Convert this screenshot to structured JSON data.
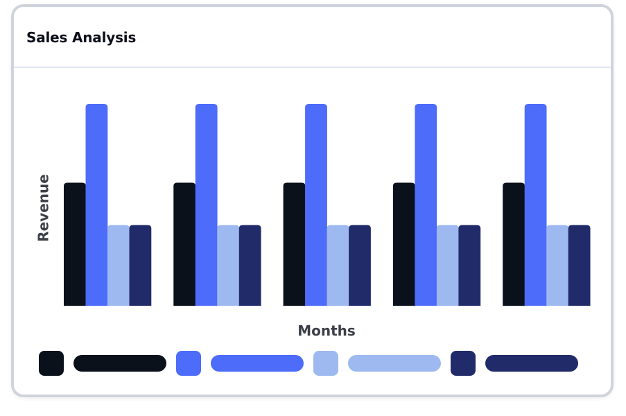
{
  "card": {
    "title": "Sales Analysis"
  },
  "chart_data": {
    "type": "bar",
    "xlabel": "Months",
    "ylabel": "Revenue",
    "categories": [
      "",
      "",
      "",
      "",
      ""
    ],
    "ylim": [
      0,
      100
    ],
    "grid": false,
    "legend_position": "bottom",
    "series": [
      {
        "color": "#0b111b",
        "values": [
          61,
          61,
          61,
          61,
          61
        ]
      },
      {
        "color": "#4d6cfa",
        "values": [
          100,
          100,
          100,
          100,
          100
        ]
      },
      {
        "color": "#9db9f0",
        "values": [
          40,
          40,
          40,
          40,
          40
        ]
      },
      {
        "color": "#212b69",
        "values": [
          40,
          40,
          40,
          40,
          40
        ]
      }
    ],
    "label_color": "#3b3f48"
  }
}
